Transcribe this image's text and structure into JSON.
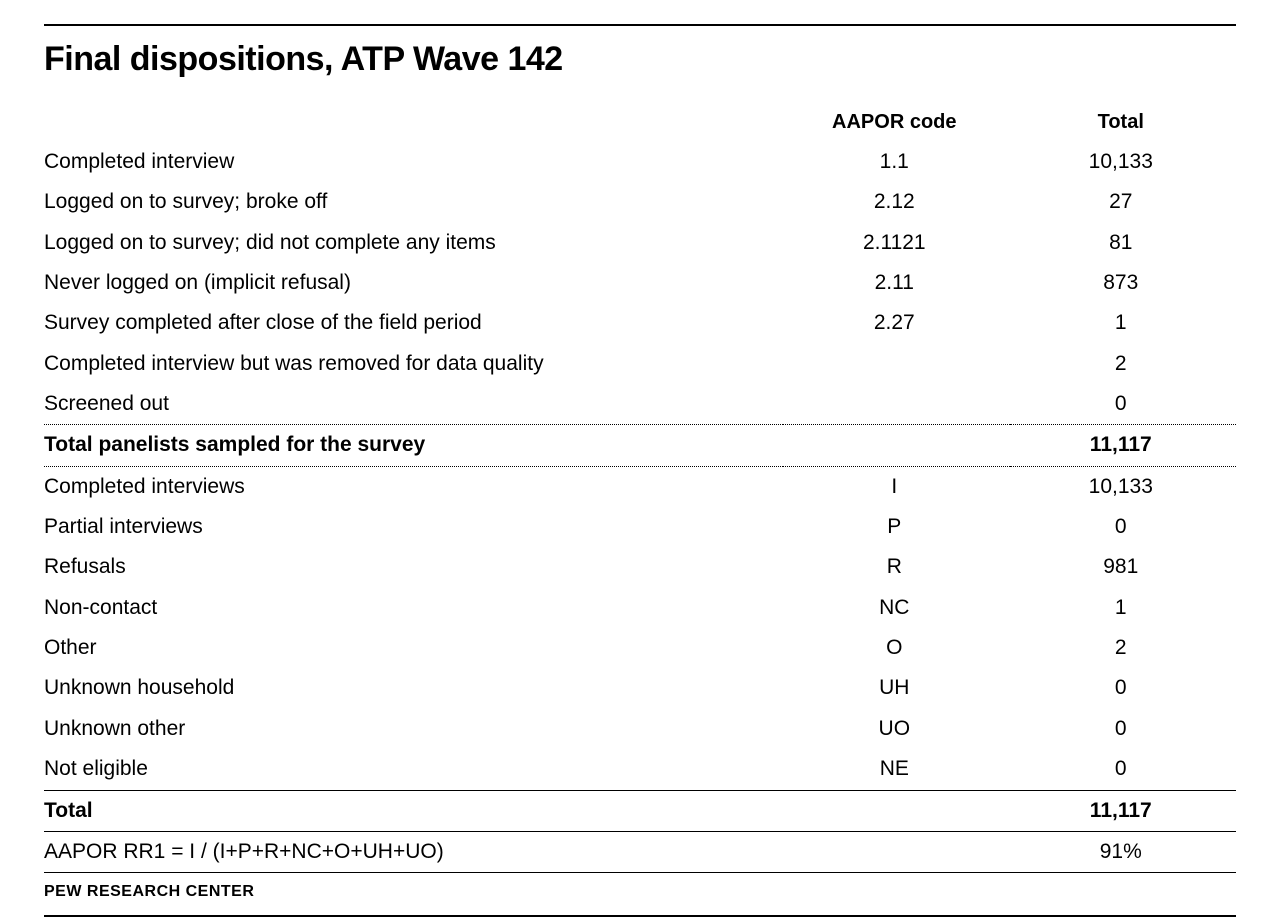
{
  "type": "table",
  "title": "Final dispositions, ATP Wave 142",
  "colors": {
    "text": "#000000",
    "background": "#ffffff",
    "rule": "#000000"
  },
  "typography": {
    "title_fontsize_pt": 26,
    "header_fontsize_pt": 15,
    "body_fontsize_pt": 16,
    "source_fontsize_pt": 12,
    "title_font_family": "Franklin Gothic Heavy",
    "body_font_family": "Franklin Gothic"
  },
  "columns": [
    {
      "key": "label",
      "header": "",
      "width_pct": 62,
      "align": "left"
    },
    {
      "key": "code",
      "header": "AAPOR code",
      "width_pct": 19,
      "align": "center"
    },
    {
      "key": "total",
      "header": "Total",
      "width_pct": 19,
      "align": "center"
    }
  ],
  "rows": [
    {
      "label": "Completed interview",
      "code": "1.1",
      "total": "10,133",
      "bold": false,
      "border_top": null
    },
    {
      "label": "Logged on to survey; broke off",
      "code": "2.12",
      "total": "27",
      "bold": false,
      "border_top": null
    },
    {
      "label": "Logged on to survey; did not complete any items",
      "code": "2.1121",
      "total": "81",
      "bold": false,
      "border_top": null
    },
    {
      "label": "Never logged on (implicit refusal)",
      "code": "2.11",
      "total": "873",
      "bold": false,
      "border_top": null
    },
    {
      "label": "Survey completed after close of the field period",
      "code": "2.27",
      "total": "1",
      "bold": false,
      "border_top": null
    },
    {
      "label": "Completed interview but was removed for data quality",
      "code": "",
      "total": "2",
      "bold": false,
      "border_top": null
    },
    {
      "label": "Screened out",
      "code": "",
      "total": "0",
      "bold": false,
      "border_top": null
    },
    {
      "label": "Total panelists sampled for the survey",
      "code": "",
      "total": "11,117",
      "bold": true,
      "border_top": "dotted"
    },
    {
      "label": "Completed interviews",
      "code": "I",
      "total": "10,133",
      "bold": false,
      "border_top": "dotted"
    },
    {
      "label": "Partial interviews",
      "code": "P",
      "total": "0",
      "bold": false,
      "border_top": null
    },
    {
      "label": "Refusals",
      "code": "R",
      "total": "981",
      "bold": false,
      "border_top": null
    },
    {
      "label": "Non-contact",
      "code": "NC",
      "total": "1",
      "bold": false,
      "border_top": null
    },
    {
      "label": "Other",
      "code": "O",
      "total": "2",
      "bold": false,
      "border_top": null
    },
    {
      "label": "Unknown household",
      "code": "UH",
      "total": "0",
      "bold": false,
      "border_top": null
    },
    {
      "label": "Unknown other",
      "code": "UO",
      "total": "0",
      "bold": false,
      "border_top": null
    },
    {
      "label": "Not eligible",
      "code": "NE",
      "total": "0",
      "bold": false,
      "border_top": null
    },
    {
      "label": "Total",
      "code": "",
      "total": "11,117",
      "bold": true,
      "border_top": "solid"
    },
    {
      "label": "AAPOR RR1 = I / (I+P+R+NC+O+UH+UO)",
      "code": "",
      "total": "91%",
      "bold": false,
      "border_top": "solid",
      "border_bottom": "solid"
    }
  ],
  "source": "PEW RESEARCH CENTER"
}
